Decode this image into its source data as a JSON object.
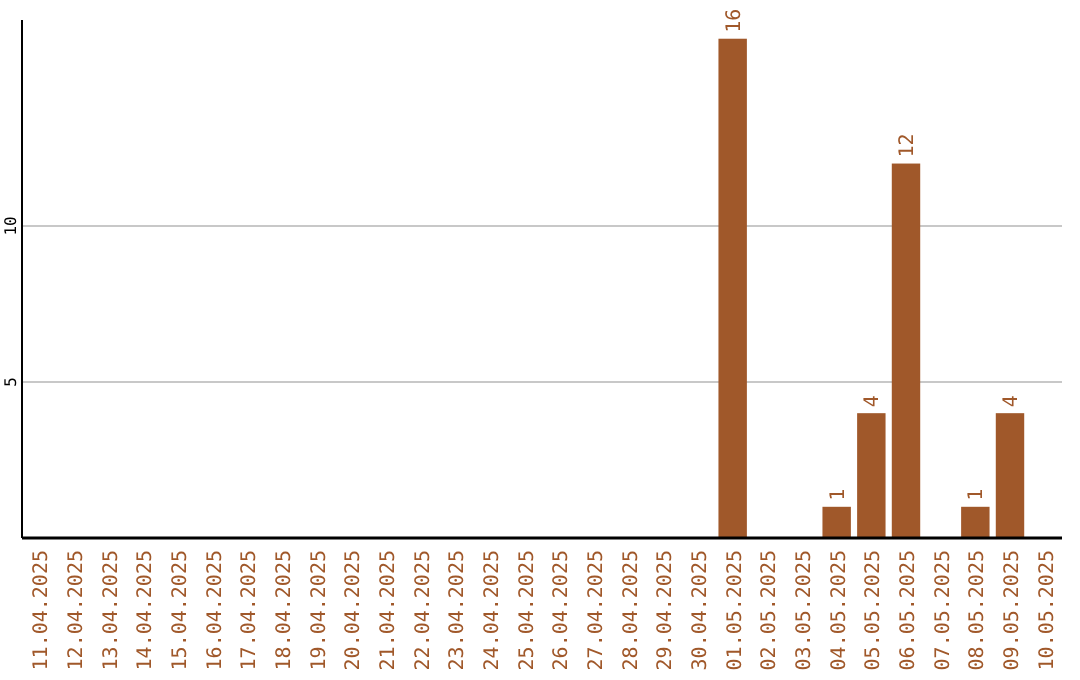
{
  "chart_data": {
    "type": "bar",
    "categories": [
      "11.04.2025",
      "12.04.2025",
      "13.04.2025",
      "14.04.2025",
      "15.04.2025",
      "16.04.2025",
      "17.04.2025",
      "18.04.2025",
      "19.04.2025",
      "20.04.2025",
      "21.04.2025",
      "22.04.2025",
      "23.04.2025",
      "24.04.2025",
      "25.04.2025",
      "26.04.2025",
      "27.04.2025",
      "28.04.2025",
      "29.04.2025",
      "30.04.2025",
      "01.05.2025",
      "02.05.2025",
      "03.05.2025",
      "04.05.2025",
      "05.05.2025",
      "06.05.2025",
      "07.05.2025",
      "08.05.2025",
      "09.05.2025",
      "10.05.2025"
    ],
    "values": [
      0,
      0,
      0,
      0,
      0,
      0,
      0,
      0,
      0,
      0,
      0,
      0,
      0,
      0,
      0,
      0,
      0,
      0,
      0,
      0,
      16,
      0,
      0,
      1,
      4,
      12,
      0,
      1,
      4,
      0
    ],
    "value_labels": [
      null,
      null,
      null,
      null,
      null,
      null,
      null,
      null,
      null,
      null,
      null,
      null,
      null,
      null,
      null,
      null,
      null,
      null,
      null,
      null,
      "16",
      null,
      null,
      "1",
      "4",
      "12",
      null,
      "1",
      "4",
      null
    ],
    "color": "#a0582a",
    "ylim": [
      0,
      16.6
    ],
    "yticks": [
      5,
      10
    ],
    "grid": "y"
  }
}
